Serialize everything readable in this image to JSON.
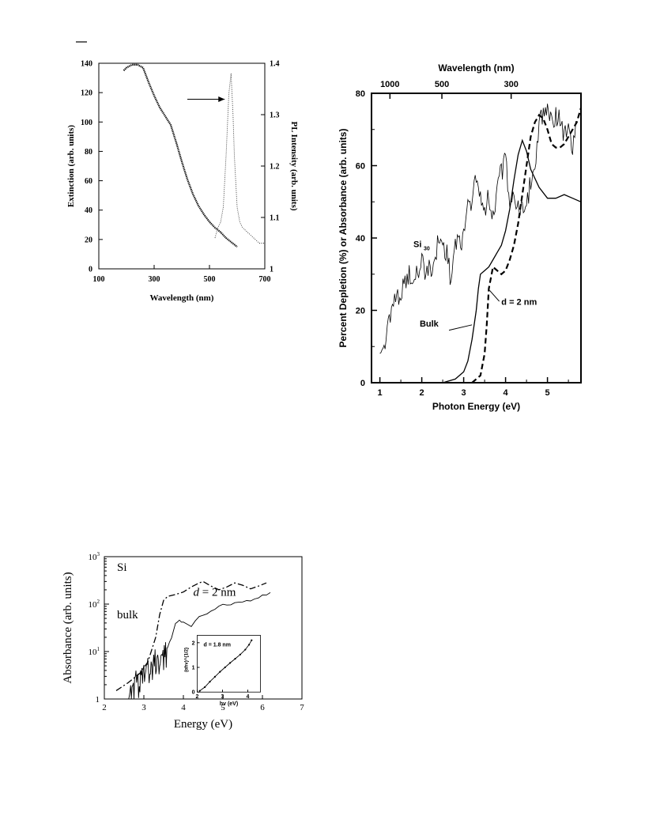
{
  "chart_data": [
    {
      "type": "line",
      "xlabel": "Wavelength (nm)",
      "ylabel": "Extinction (arb. units)",
      "y2label": "PL Intensity (arb. units)",
      "xlim": [
        100,
        700
      ],
      "ylim": [
        0,
        140
      ],
      "y2lim": [
        1,
        1.4
      ],
      "xticks": [
        "100",
        "300",
        "500",
        "700"
      ],
      "yticks": [
        "0",
        "20",
        "40",
        "60",
        "80",
        "100",
        "120",
        "140"
      ],
      "y2ticks": [
        "1",
        "1.1",
        "1.2",
        "1.3",
        "1.4"
      ],
      "series": [
        {
          "style": "dotted-heavy",
          "axis": "left",
          "x": [
            190,
            200,
            220,
            240,
            260,
            270,
            280,
            300,
            320,
            340,
            360,
            380,
            400,
            420,
            440,
            460,
            480,
            500,
            520,
            540,
            560,
            580,
            600
          ],
          "y": [
            135,
            137,
            139,
            139,
            137,
            132,
            127,
            118,
            110,
            104,
            98,
            86,
            73,
            61,
            51,
            43,
            37,
            32,
            28,
            25,
            21,
            18,
            15
          ]
        },
        {
          "style": "dotted-light",
          "axis": "right",
          "x": [
            520,
            530,
            540,
            550,
            560,
            570,
            578,
            585,
            590,
            600,
            610,
            620,
            640,
            660,
            680,
            700
          ],
          "y": [
            1.06,
            1.08,
            1.09,
            1.12,
            1.22,
            1.34,
            1.38,
            1.3,
            1.22,
            1.12,
            1.09,
            1.08,
            1.07,
            1.06,
            1.05,
            1.05
          ]
        }
      ]
    },
    {
      "type": "line",
      "xlabel": "Photon Energy  (eV)",
      "x2label": "Wavelength  (nm)",
      "ylabel": "Percent Depletion (%) or Absorbance  (arb. units)",
      "xlim": [
        0.8,
        5.8
      ],
      "ylim": [
        0,
        80
      ],
      "xticks": [
        "1",
        "2",
        "3",
        "4",
        "5"
      ],
      "yticks": [
        "0",
        "20",
        "40",
        "60",
        "80"
      ],
      "x2ticks": [
        "1000",
        "500",
        "300"
      ],
      "annotations": {
        "si30_main": "Si",
        "si30_sub": "30",
        "bulk": "Bulk",
        "d2": "d = 2 nm"
      },
      "series": [
        {
          "style": "thin-noisy",
          "x": [
            1.0,
            1.1,
            1.2,
            1.3,
            1.4,
            1.5,
            1.6,
            1.7,
            1.8,
            1.9,
            2.0,
            2.1,
            2.2,
            2.3,
            2.4,
            2.5,
            2.6,
            2.7,
            2.8,
            2.9,
            3.0,
            3.1,
            3.2,
            3.3,
            3.4,
            3.5,
            3.6,
            3.7,
            3.8,
            3.9,
            4.0,
            4.1,
            4.2,
            4.3,
            4.4,
            4.5,
            4.6,
            4.7,
            4.8,
            4.9,
            5.0,
            5.1,
            5.2,
            5.3,
            5.4,
            5.5,
            5.6,
            5.7
          ],
          "y": [
            10,
            9,
            18,
            21,
            24,
            25,
            27,
            30,
            27,
            31,
            34,
            30,
            32,
            33,
            40,
            38,
            36,
            28,
            40,
            39,
            40,
            49,
            50,
            58,
            52,
            48,
            52,
            45,
            55,
            58,
            62,
            50,
            53,
            48,
            47,
            48,
            56,
            60,
            72,
            75,
            77,
            72,
            74,
            73,
            68,
            70,
            64,
            75
          ]
        },
        {
          "style": "solid",
          "x": [
            2.5,
            2.8,
            3.0,
            3.1,
            3.2,
            3.3,
            3.35,
            3.4,
            3.5,
            3.6,
            3.7,
            3.8,
            3.9,
            4.0,
            4.1,
            4.2,
            4.3,
            4.4,
            4.5,
            4.6,
            4.8,
            5.0,
            5.2,
            5.4,
            5.6,
            5.8
          ],
          "y": [
            0,
            1,
            3,
            6,
            12,
            20,
            26,
            30,
            31,
            32,
            34,
            36,
            38,
            42,
            48,
            56,
            63,
            67,
            64,
            59,
            54,
            51,
            51,
            52,
            51,
            50
          ]
        },
        {
          "style": "dashed",
          "x": [
            3.2,
            3.4,
            3.5,
            3.55,
            3.6,
            3.7,
            3.8,
            3.9,
            4.0,
            4.1,
            4.2,
            4.3,
            4.4,
            4.5,
            4.6,
            4.7,
            4.8,
            4.9,
            5.0,
            5.1,
            5.2,
            5.3,
            5.4,
            5.5,
            5.6,
            5.7,
            5.8
          ],
          "y": [
            0,
            2,
            8,
            16,
            26,
            32,
            31,
            30,
            31,
            34,
            38,
            44,
            52,
            60,
            68,
            72,
            74,
            73,
            70,
            66,
            65,
            65,
            66,
            68,
            70,
            72,
            76
          ]
        }
      ]
    },
    {
      "type": "line",
      "xlabel": "Energy (eV)",
      "ylabel": "Absorbance (arb. units)",
      "xlim": [
        2,
        7
      ],
      "ylim": [
        1,
        1000
      ],
      "yscale": "log",
      "xticks": [
        "2",
        "3",
        "4",
        "5",
        "6",
        "7"
      ],
      "yticks": [
        {
          "base": "1",
          "exp": ""
        },
        {
          "base": "10",
          "exp": "1"
        },
        {
          "base": "10",
          "exp": "2"
        },
        {
          "base": "10",
          "exp": "3"
        }
      ],
      "labels": {
        "si": "Si",
        "d_italic": "d",
        "d_rest": " = 2 nm",
        "bulk": "bulk"
      },
      "series": [
        {
          "style": "dash-dot",
          "x": [
            2.3,
            2.6,
            2.9,
            3.1,
            3.3,
            3.4,
            3.5,
            3.6,
            3.8,
            4.0,
            4.2,
            4.4,
            4.5,
            4.7,
            4.9,
            5.1,
            5.3,
            5.5,
            5.7,
            5.9,
            6.1
          ],
          "y": [
            1.5,
            2.2,
            3.5,
            6,
            20,
            60,
            120,
            145,
            160,
            180,
            230,
            280,
            300,
            240,
            200,
            230,
            280,
            250,
            210,
            240,
            280
          ]
        },
        {
          "style": "solid-noisy",
          "x": [
            2.6,
            2.7,
            2.8,
            2.9,
            3.0,
            3.1,
            3.2,
            3.3,
            3.4,
            3.5,
            3.6,
            3.7,
            3.8,
            3.9,
            4.0,
            4.2,
            4.4,
            4.6,
            4.8,
            5.0,
            5.2,
            5.4,
            5.6,
            5.8,
            6.0,
            6.2
          ],
          "y": [
            1,
            1.8,
            2.8,
            2.4,
            3.5,
            5,
            4.5,
            8,
            6.5,
            9,
            12,
            20,
            38,
            45,
            42,
            35,
            55,
            60,
            80,
            100,
            95,
            110,
            115,
            130,
            150,
            175
          ]
        }
      ],
      "inset": {
        "xlabel": "hv (eV)",
        "ylabel": "(αhv)^{1/2}",
        "annotation": "d = 1.8 nm",
        "xlim": [
          2,
          4.5
        ],
        "ylim": [
          0,
          2.3
        ],
        "xticks": [
          "2",
          "3",
          "4"
        ],
        "yticks": [
          "0",
          "1",
          "2"
        ],
        "x": [
          2.1,
          2.3,
          2.5,
          2.7,
          2.9,
          3.1,
          3.3,
          3.5,
          3.7,
          3.9,
          4.05,
          4.15
        ],
        "y": [
          0.05,
          0.2,
          0.42,
          0.62,
          0.82,
          1.0,
          1.18,
          1.35,
          1.52,
          1.72,
          1.92,
          2.1
        ]
      }
    }
  ]
}
